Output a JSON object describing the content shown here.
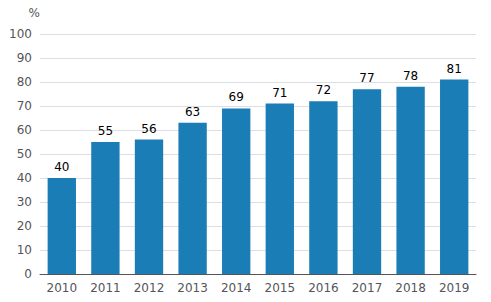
{
  "chart_data": {
    "type": "bar",
    "categories": [
      "2010",
      "2011",
      "2012",
      "2013",
      "2014",
      "2015",
      "2016",
      "2017",
      "2018",
      "2019"
    ],
    "values": [
      40,
      55,
      56,
      63,
      69,
      71,
      72,
      77,
      78,
      81
    ],
    "color": "#1a7db5",
    "ylabel": "%",
    "ylim": [
      0,
      100
    ],
    "yticks": [
      0,
      10,
      20,
      30,
      40,
      50,
      60,
      70,
      80,
      90,
      100
    ],
    "grid": true,
    "data_labels": true
  }
}
